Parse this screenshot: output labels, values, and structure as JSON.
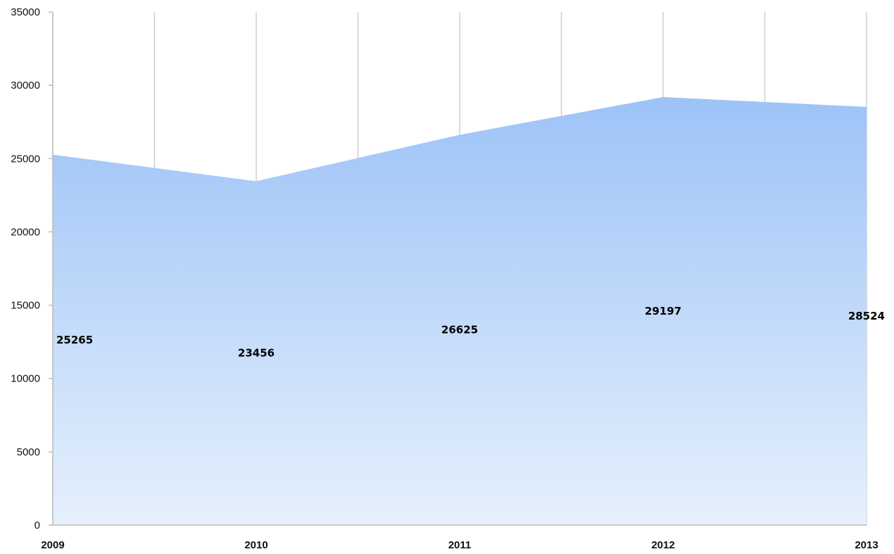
{
  "chart_data": {
    "type": "area",
    "categories": [
      "2009",
      "2010",
      "2011",
      "2012",
      "2013"
    ],
    "series": [
      {
        "values": [
          25265,
          23456,
          26625,
          29197,
          28524
        ],
        "data_labels": [
          "25265",
          "23456",
          "26625",
          "29197",
          "28524"
        ]
      }
    ],
    "title": "",
    "xlabel": "",
    "ylabel": "",
    "ylim": [
      0,
      35000
    ],
    "yticks": [
      "0",
      "5000",
      "10000",
      "15000",
      "20000",
      "25000",
      "30000",
      "35000"
    ],
    "xticks": [
      "2009",
      "2010",
      "2011",
      "2012",
      "2013"
    ],
    "grid": "vertical",
    "legend": "none",
    "colors": {
      "area_top": "#9dc3f7",
      "area_bottom": "#e6f0fc",
      "gridline": "#cfcfcf",
      "axis": "#bdbdbd",
      "text": "#111111"
    }
  }
}
